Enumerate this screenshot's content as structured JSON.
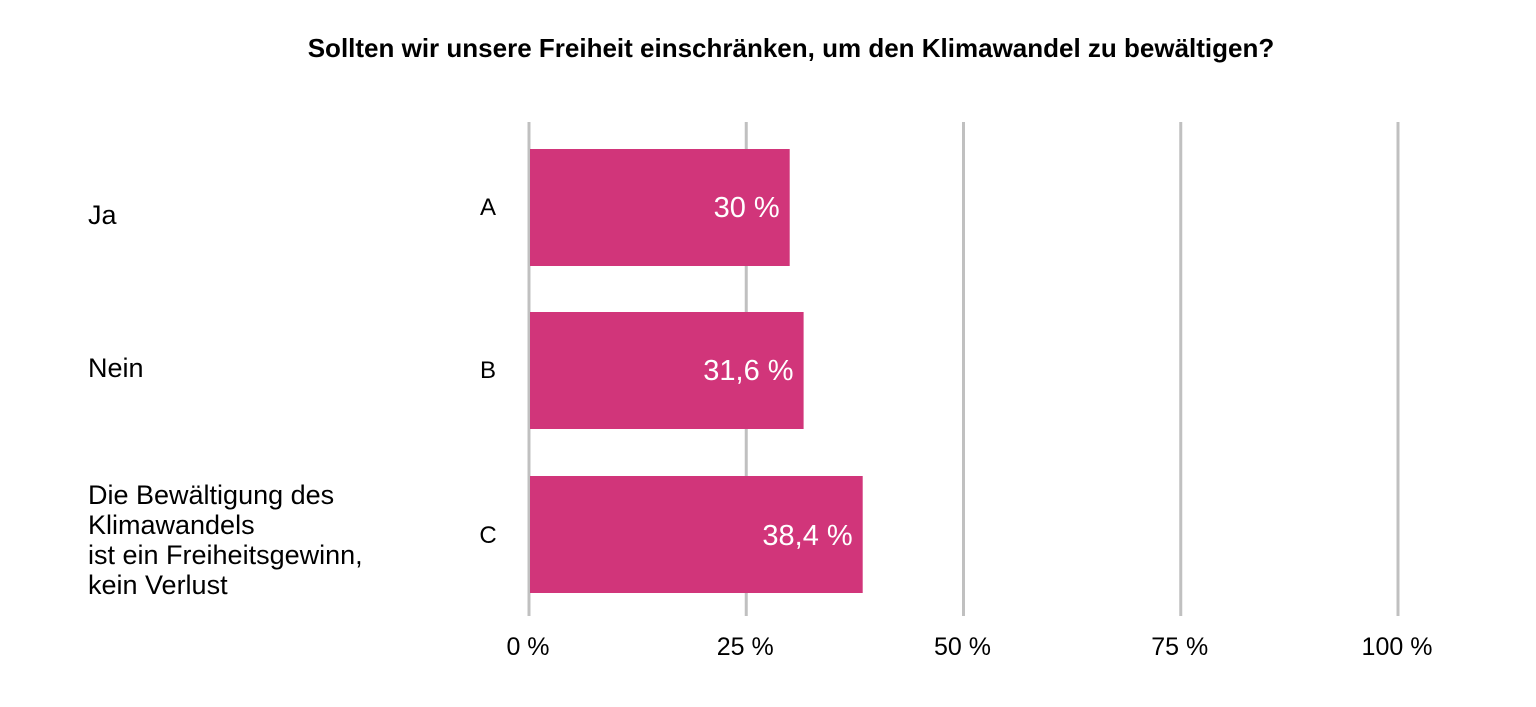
{
  "chart_data": {
    "type": "bar",
    "orientation": "horizontal",
    "title": "Sollten wir unsere Freiheit einschränken, um den Klimawandel zu bewältigen?",
    "categories": [
      "A",
      "B",
      "C"
    ],
    "category_descriptions": [
      [
        "Ja"
      ],
      [
        "Nein"
      ],
      [
        "Die Bewältigung des",
        "Klimawandels",
        "ist ein Freiheitsgewinn,",
        "kein Verlust"
      ]
    ],
    "values": [
      30,
      31.6,
      38.4
    ],
    "value_labels": [
      "30 %",
      "31,6 %",
      "38,4 %"
    ],
    "xlim": [
      0,
      100
    ],
    "x_ticks": [
      0,
      25,
      50,
      75,
      100
    ],
    "x_tick_labels": [
      "0 %",
      "25 %",
      "50 %",
      "75 %",
      "100 %"
    ],
    "grid": true,
    "bar_color": "#d1357a",
    "grid_color": "#c0c0c0",
    "value_label_color": "#ffffff"
  }
}
